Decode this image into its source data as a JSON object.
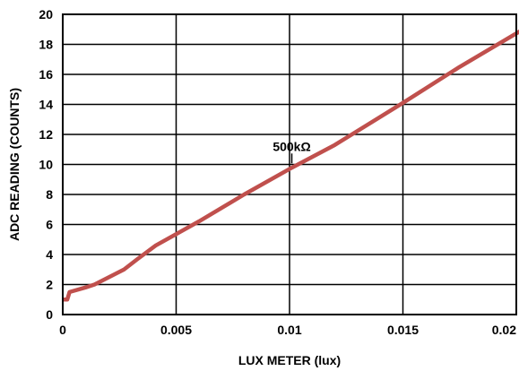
{
  "chart_data": {
    "type": "line",
    "xlabel": "LUX METER (lux)",
    "ylabel": "ADC READING (COUNTS)",
    "xlim": [
      0,
      0.02
    ],
    "ylim": [
      0,
      20
    ],
    "grid": true,
    "x_ticks": [
      {
        "value": 0,
        "label": "0"
      },
      {
        "value": 0.005,
        "label": "0.005"
      },
      {
        "value": 0.01,
        "label": "0.01"
      },
      {
        "value": 0.015,
        "label": "0.015"
      },
      {
        "value": 0.02,
        "label": "0.02"
      }
    ],
    "y_ticks": [
      {
        "value": 0,
        "label": "0"
      },
      {
        "value": 2,
        "label": "2"
      },
      {
        "value": 4,
        "label": "4"
      },
      {
        "value": 6,
        "label": "6"
      },
      {
        "value": 8,
        "label": "8"
      },
      {
        "value": 10,
        "label": "10"
      },
      {
        "value": 12,
        "label": "12"
      },
      {
        "value": 14,
        "label": "14"
      },
      {
        "value": 16,
        "label": "16"
      },
      {
        "value": 18,
        "label": "18"
      },
      {
        "value": 20,
        "label": "20"
      }
    ],
    "series": [
      {
        "color": "#c0504d",
        "points": [
          {
            "x": 0.0,
            "y": 1.0
          },
          {
            "x": 0.0002,
            "y": 1.0
          },
          {
            "x": 0.0003,
            "y": 1.5
          },
          {
            "x": 0.001,
            "y": 1.8
          },
          {
            "x": 0.0014,
            "y": 2.0
          },
          {
            "x": 0.0027,
            "y": 3.0
          },
          {
            "x": 0.0033,
            "y": 3.7
          },
          {
            "x": 0.0041,
            "y": 4.6
          },
          {
            "x": 0.006,
            "y": 6.2
          },
          {
            "x": 0.008,
            "y": 8.0
          },
          {
            "x": 0.01,
            "y": 9.7
          },
          {
            "x": 0.012,
            "y": 11.3
          },
          {
            "x": 0.015,
            "y": 14.1
          },
          {
            "x": 0.0175,
            "y": 16.5
          },
          {
            "x": 0.0203,
            "y": 19.0
          }
        ]
      }
    ],
    "annotations": [
      {
        "text": "500kΩ",
        "x": 0.0101,
        "y": 10.55
      }
    ]
  }
}
